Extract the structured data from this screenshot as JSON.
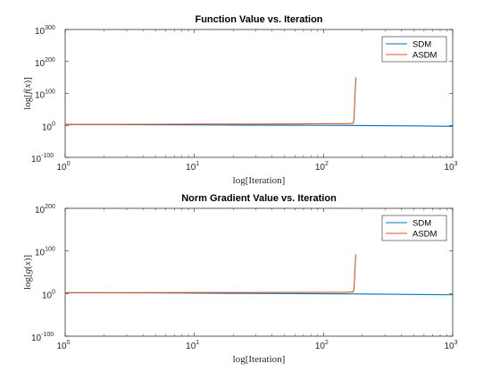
{
  "chart_data": [
    {
      "type": "line",
      "title": "Function Value vs. Iteration",
      "xlabel": "log[Iteration]",
      "ylabel": "log[f(x)]",
      "xscale": "log",
      "yscale": "log",
      "xlim": [
        1,
        1000
      ],
      "ylim": [
        1e-100,
        1e+300
      ],
      "x_ticks": [
        {
          "base": "10",
          "exp": "0"
        },
        {
          "base": "10",
          "exp": "1"
        },
        {
          "base": "10",
          "exp": "2"
        },
        {
          "base": "10",
          "exp": "3"
        }
      ],
      "y_ticks": [
        {
          "base": "10",
          "exp": "-100",
          "value_log10": -100
        },
        {
          "base": "10",
          "exp": "0",
          "value_log10": 0
        },
        {
          "base": "10",
          "exp": "100",
          "value_log10": 100
        },
        {
          "base": "10",
          "exp": "200",
          "value_log10": 200
        },
        {
          "base": "10",
          "exp": "300",
          "value_log10": 300
        }
      ],
      "legend_position": "top-right",
      "grid": false,
      "series": [
        {
          "name": "SDM",
          "color": "#0072BD",
          "x": [
            1,
            2,
            5,
            10,
            20,
            50,
            100,
            200,
            500,
            1000
          ],
          "y_log10": [
            3,
            2.6,
            2,
            1.5,
            1,
            0.5,
            0,
            -0.5,
            -1.5,
            -3
          ]
        },
        {
          "name": "ASDM",
          "color": "#D95319",
          "x": [
            1,
            2,
            5,
            10,
            20,
            50,
            100,
            150,
            170,
            172,
            174,
            176,
            178
          ],
          "y_log10": [
            3,
            3,
            3.5,
            4,
            4,
            4.5,
            5,
            5,
            6,
            20,
            60,
            110,
            150
          ]
        }
      ]
    },
    {
      "type": "line",
      "title": "Norm Gradient Value vs. Iteration",
      "xlabel": "log[Iteration]",
      "ylabel": "log[g(x)]",
      "xscale": "log",
      "yscale": "log",
      "xlim": [
        1,
        1000
      ],
      "ylim": [
        1e-100,
        1e+200
      ],
      "x_ticks": [
        {
          "base": "10",
          "exp": "0"
        },
        {
          "base": "10",
          "exp": "1"
        },
        {
          "base": "10",
          "exp": "2"
        },
        {
          "base": "10",
          "exp": "3"
        }
      ],
      "y_ticks": [
        {
          "base": "10",
          "exp": "-100",
          "value_log10": -100
        },
        {
          "base": "10",
          "exp": "0",
          "value_log10": 0
        },
        {
          "base": "10",
          "exp": "100",
          "value_log10": 100
        },
        {
          "base": "10",
          "exp": "200",
          "value_log10": 200
        }
      ],
      "legend_position": "top-right",
      "grid": false,
      "series": [
        {
          "name": "SDM",
          "color": "#0072BD",
          "x": [
            1,
            2,
            5,
            10,
            20,
            50,
            100,
            200,
            500,
            1000
          ],
          "y_log10": [
            2,
            1.8,
            1.5,
            1,
            0.5,
            0,
            -0.5,
            -1,
            -2,
            -3
          ]
        },
        {
          "name": "ASDM",
          "color": "#D95319",
          "x": [
            1,
            2,
            5,
            10,
            20,
            50,
            100,
            150,
            170,
            172,
            174,
            176,
            178
          ],
          "y_log10": [
            2,
            2,
            2.2,
            2.5,
            2.5,
            2.8,
            3,
            3,
            4,
            12,
            35,
            70,
            92
          ]
        }
      ]
    }
  ]
}
